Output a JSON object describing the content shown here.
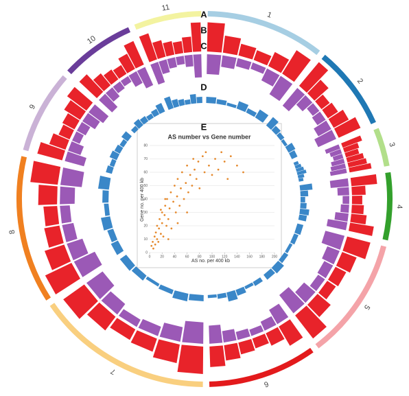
{
  "chart_data": [
    {
      "type": "circos",
      "label": "A",
      "chromosomes": [
        {
          "name": "1",
          "length": 37,
          "color": "#a6cee3"
        },
        {
          "name": "2",
          "length": 26,
          "color": "#1f78b4"
        },
        {
          "name": "3",
          "length": 12,
          "color": "#b2df8a"
        },
        {
          "name": "4",
          "length": 21,
          "color": "#33a02c"
        },
        {
          "name": "5",
          "length": 38,
          "color": "#f4a3a8"
        },
        {
          "name": "6",
          "length": 34,
          "color": "#e31a1c"
        },
        {
          "name": "7",
          "length": 55,
          "color": "#f9cf7f"
        },
        {
          "name": "8",
          "length": 46,
          "color": "#f08020"
        },
        {
          "name": "9",
          "length": 26,
          "color": "#cab2d6"
        },
        {
          "name": "10",
          "length": 23,
          "color": "#6a3d9a"
        },
        {
          "name": "11",
          "length": 21,
          "color": "#f3f3a0"
        }
      ],
      "tracks": [
        {
          "label": "B",
          "color": "#e8232a",
          "direction": "out",
          "values": [
            [
              85,
              50,
              35,
              30,
              45,
              80
            ],
            [
              90,
              55,
              30,
              35,
              50,
              70
            ],
            [
              60,
              45,
              40,
              50,
              55,
              65
            ],
            [
              75,
              40,
              30,
              35,
              45,
              70
            ],
            [
              70,
              45,
              35,
              30,
              50,
              85
            ],
            [
              65,
              40,
              30,
              35,
              45,
              60
            ],
            [
              80,
              55,
              40,
              35,
              50,
              75
            ],
            [
              85,
              60,
              45,
              40,
              55,
              80
            ],
            [
              75,
              50,
              35,
              40,
              55,
              70
            ],
            [
              70,
              45,
              35,
              30,
              50,
              75
            ],
            [
              80,
              50,
              40,
              35,
              45,
              85
            ]
          ]
        },
        {
          "label": "C",
          "color": "#9b59b6",
          "direction": "in",
          "values": [
            [
              60,
              35,
              25,
              20,
              40,
              65
            ],
            [
              70,
              40,
              25,
              30,
              45,
              60
            ],
            [
              45,
              35,
              30,
              40,
              45,
              50
            ],
            [
              55,
              35,
              20,
              25,
              40,
              60
            ],
            [
              60,
              40,
              30,
              25,
              45,
              70
            ],
            [
              50,
              30,
              20,
              25,
              35,
              55
            ],
            [
              65,
              45,
              30,
              25,
              40,
              60
            ],
            [
              70,
              50,
              35,
              30,
              45,
              65
            ],
            [
              60,
              40,
              25,
              30,
              45,
              55
            ],
            [
              55,
              35,
              25,
              20,
              40,
              60
            ],
            [
              65,
              40,
              30,
              25,
              35,
              70
            ]
          ]
        },
        {
          "label": "D",
          "color": "#3a87c8",
          "direction": "out",
          "values": [
            [
              20,
              15,
              10,
              25,
              15,
              30
            ],
            [
              35,
              20,
              15,
              10,
              25,
              20
            ],
            [
              15,
              20,
              25,
              30,
              20,
              15
            ],
            [
              40,
              25,
              15,
              20,
              30,
              25
            ],
            [
              20,
              15,
              10,
              15,
              25,
              20
            ],
            [
              15,
              10,
              20,
              30,
              15,
              10
            ],
            [
              20,
              25,
              15,
              10,
              20,
              25
            ],
            [
              25,
              20,
              30,
              15,
              20,
              35
            ],
            [
              20,
              15,
              25,
              20,
              15,
              25
            ],
            [
              15,
              25,
              20,
              15,
              20,
              30
            ],
            [
              40,
              25,
              20,
              15,
              30,
              20
            ]
          ]
        }
      ]
    },
    {
      "type": "scatter",
      "label": "E",
      "title": "AS number vs Gene number",
      "x_label": "AS no. per 400 kb",
      "y_label": "Gene no. per 400 kb",
      "color": "#e58a2e",
      "xlim": [
        0,
        200
      ],
      "xticks": [
        0,
        20,
        40,
        60,
        80,
        100,
        120,
        140,
        160,
        180,
        200
      ],
      "ylim": [
        0,
        80
      ],
      "yticks": [
        0,
        10,
        20,
        30,
        40,
        50,
        60,
        70,
        80
      ],
      "grid": true,
      "x": [
        3,
        5,
        6,
        8,
        9,
        10,
        12,
        12,
        14,
        15,
        16,
        18,
        20,
        20,
        22,
        24,
        25,
        27,
        28,
        30,
        32,
        34,
        35,
        38,
        40,
        42,
        44,
        45,
        48,
        50,
        52,
        55,
        58,
        60,
        62,
        65,
        68,
        70,
        72,
        75,
        78,
        80,
        85,
        88,
        90,
        95,
        100,
        105,
        110,
        115,
        120,
        125,
        130,
        140,
        150,
        60,
        45,
        30,
        25,
        18
      ],
      "values": [
        5,
        8,
        3,
        12,
        6,
        15,
        10,
        20,
        8,
        18,
        25,
        14,
        22,
        30,
        12,
        28,
        35,
        20,
        40,
        25,
        33,
        45,
        18,
        38,
        50,
        30,
        42,
        55,
        35,
        48,
        60,
        40,
        52,
        65,
        45,
        58,
        50,
        70,
        62,
        55,
        68,
        48,
        72,
        60,
        75,
        65,
        58,
        70,
        62,
        75,
        68,
        55,
        72,
        65,
        60,
        30,
        22,
        10,
        40,
        32
      ]
    }
  ]
}
